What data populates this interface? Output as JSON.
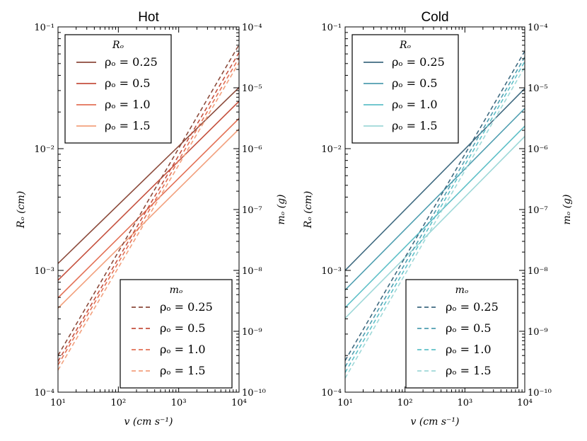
{
  "chart_data": [
    {
      "type": "line",
      "title": "Hot",
      "xlabel": "v (cm s⁻¹)",
      "ylabel": "Rₒ (cm)",
      "ylabel2": "mₒ (g)",
      "xscale": "log",
      "yscale": "log",
      "xlim": [
        10,
        10000
      ],
      "ylim": [
        0.0001,
        0.1
      ],
      "ylim2": [
        1e-10,
        0.0001
      ],
      "x_ticks": [
        "10¹",
        "10²",
        "10³",
        "10⁴"
      ],
      "y_ticks": [
        "10⁻⁴",
        "10⁻³",
        "10⁻²",
        "10⁻¹"
      ],
      "y2_ticks": [
        "10⁻¹⁰",
        "10⁻⁹",
        "10⁻⁸",
        "10⁻⁷",
        "10⁻⁶",
        "10⁻⁵",
        "10⁻⁴"
      ],
      "legend_R": {
        "title": "Rₒ",
        "position": "upper-left"
      },
      "legend_m": {
        "title": "mₒ",
        "position": "lower-right"
      },
      "series_R": [
        {
          "name": "ρₒ = 0.25",
          "color": "#8b4a3b",
          "x": [
            10,
            10000
          ],
          "y": [
            0.00114,
            0.0318
          ]
        },
        {
          "name": "ρₒ = 0.5",
          "color": "#c5513f",
          "x": [
            10,
            10000
          ],
          "y": [
            0.00083,
            0.0245
          ]
        },
        {
          "name": "ρₒ = 1.0",
          "color": "#e37156",
          "x": [
            10,
            10000
          ],
          "y": [
            0.000595,
            0.0177
          ]
        },
        {
          "name": "ρₒ = 1.5",
          "color": "#f2a07d",
          "x": [
            10,
            10000
          ],
          "y": [
            0.00049,
            0.0145
          ]
        }
      ],
      "series_m": [
        {
          "name": "ρₒ = 0.25",
          "color": "#8b4a3b",
          "x": [
            10,
            10000
          ],
          "y": [
            4e-10,
            5.1e-05
          ]
        },
        {
          "name": "ρₒ = 0.5",
          "color": "#c5513f",
          "x": [
            10,
            10000
          ],
          "y": [
            3.2e-10,
            3.8e-05
          ]
        },
        {
          "name": "ρₒ = 1.0",
          "color": "#e37156",
          "x": [
            10,
            10000
          ],
          "y": [
            2.8e-10,
            3.1e-05
          ]
        },
        {
          "name": "ρₒ = 1.5",
          "color": "#f2a07d",
          "x": [
            10,
            10000
          ],
          "y": [
            2.3e-10,
            2.6e-05
          ]
        }
      ]
    },
    {
      "type": "line",
      "title": "Cold",
      "xlabel": "v (cm s⁻¹)",
      "ylabel": "Rₒ (cm)",
      "ylabel2": "mₒ (g)",
      "xscale": "log",
      "yscale": "log",
      "xlim": [
        10,
        10000
      ],
      "ylim": [
        0.0001,
        0.1
      ],
      "ylim2": [
        1e-10,
        0.0001
      ],
      "x_ticks": [
        "10¹",
        "10²",
        "10³",
        "10⁴"
      ],
      "y_ticks": [
        "10⁻⁴",
        "10⁻³",
        "10⁻²",
        "10⁻¹"
      ],
      "y2_ticks": [
        "10⁻¹⁰",
        "10⁻⁹",
        "10⁻⁸",
        "10⁻⁷",
        "10⁻⁶",
        "10⁻⁵",
        "10⁻⁴"
      ],
      "legend_R": {
        "title": "Rₒ",
        "position": "upper-left"
      },
      "legend_m": {
        "title": "mₒ",
        "position": "lower-right"
      },
      "series_R": [
        {
          "name": "ρₒ = 0.25",
          "color": "#3f6a80",
          "x": [
            10,
            10000
          ],
          "y": [
            0.001,
            0.0312
          ]
        },
        {
          "name": "ρₒ = 0.5",
          "color": "#4f9eb0",
          "x": [
            10,
            10000
          ],
          "y": [
            0.00069,
            0.0214
          ]
        },
        {
          "name": "ρₒ = 1.0",
          "color": "#5fc0c8",
          "x": [
            10,
            10000
          ],
          "y": [
            0.000495,
            0.0153
          ]
        },
        {
          "name": "ρₒ = 1.5",
          "color": "#9ed8d8",
          "x": [
            10,
            10000
          ],
          "y": [
            0.000405,
            0.0126
          ]
        }
      ],
      "series_m": [
        {
          "name": "ρₒ = 0.25",
          "color": "#3f6a80",
          "x": [
            10,
            10000
          ],
          "y": [
            3.3e-10,
            4e-05
          ]
        },
        {
          "name": "ρₒ = 0.5",
          "color": "#4f9eb0",
          "x": [
            10,
            10000
          ],
          "y": [
            2.6e-10,
            3.2e-05
          ]
        },
        {
          "name": "ρₒ = 1.0",
          "color": "#5fc0c8",
          "x": [
            10,
            10000
          ],
          "y": [
            2.1e-10,
            2.7e-05
          ]
        },
        {
          "name": "ρₒ = 1.5",
          "color": "#9ed8d8",
          "x": [
            10,
            10000
          ],
          "y": [
            1.7e-10,
            2.2e-05
          ]
        }
      ]
    }
  ]
}
